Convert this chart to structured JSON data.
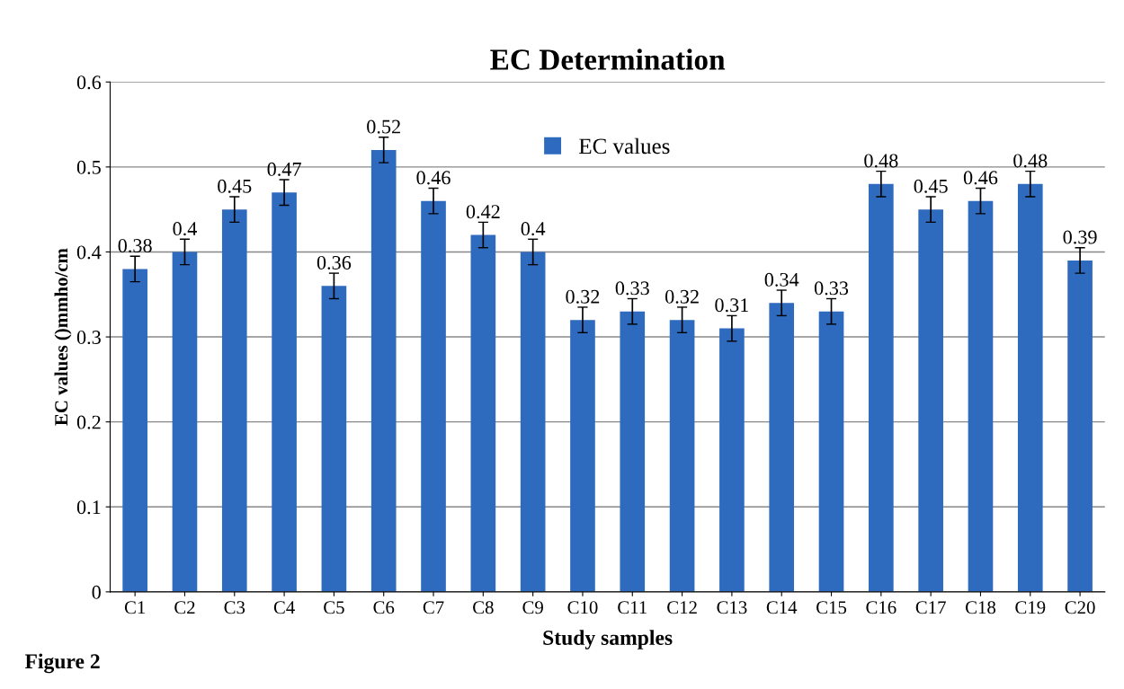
{
  "chart_data": {
    "type": "bar",
    "title": "EC Determination",
    "xlabel": "Study samples",
    "ylabel": "EC values ()mmho/cm",
    "categories": [
      "C1",
      "C2",
      "C3",
      "C4",
      "C5",
      "C6",
      "C7",
      "C8",
      "C9",
      "C10",
      "C11",
      "C12",
      "C13",
      "C14",
      "C15",
      "C16",
      "C17",
      "C18",
      "C19",
      "C20"
    ],
    "series": [
      {
        "name": "EC values",
        "color": "#2e6bbf",
        "values": [
          0.38,
          0.4,
          0.45,
          0.47,
          0.36,
          0.52,
          0.46,
          0.42,
          0.4,
          0.32,
          0.33,
          0.32,
          0.31,
          0.34,
          0.33,
          0.48,
          0.45,
          0.46,
          0.48,
          0.39
        ],
        "errors": [
          0.015,
          0.015,
          0.015,
          0.015,
          0.015,
          0.015,
          0.015,
          0.015,
          0.015,
          0.015,
          0.015,
          0.015,
          0.015,
          0.015,
          0.015,
          0.015,
          0.015,
          0.015,
          0.015,
          0.015
        ]
      }
    ],
    "ylim": [
      0,
      0.6
    ],
    "yticks": [
      0,
      0.1,
      0.2,
      0.3,
      0.4,
      0.5,
      0.6
    ],
    "grid": "y",
    "legend": "top",
    "data_labels": true,
    "annotations": [
      "Figure 2"
    ]
  }
}
